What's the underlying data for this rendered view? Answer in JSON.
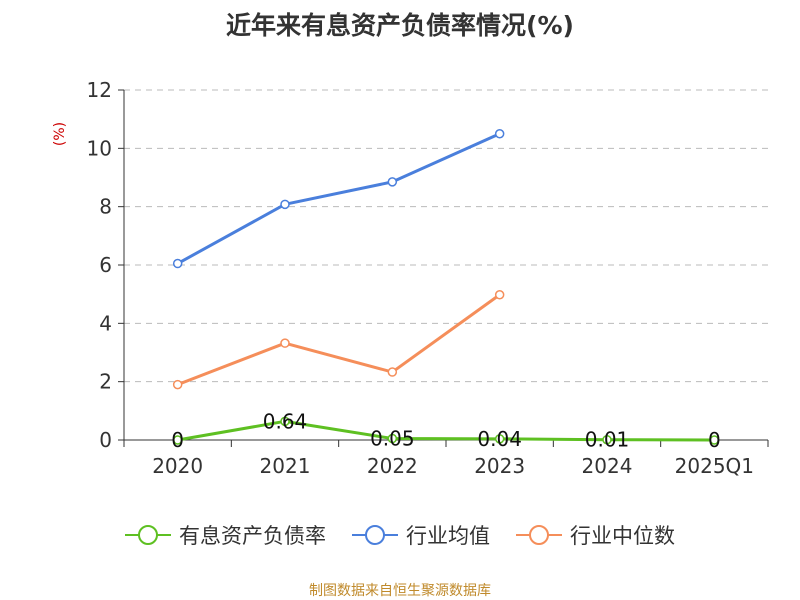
{
  "title": "近年来有息资产负债率情况(%)",
  "footer": "制图数据来自恒生聚源数据库",
  "chart_data": {
    "type": "line",
    "title": "近年来有息资产负债率情况(%)",
    "ylabel": "(%)",
    "xlabel": "",
    "categories": [
      "2020",
      "2021",
      "2022",
      "2023",
      "2024",
      "2025Q1"
    ],
    "ylim": [
      0,
      12
    ],
    "yticks": [
      "0",
      "2",
      "4",
      "6",
      "8",
      "10",
      "12"
    ],
    "grid": true,
    "legend_position": "bottom",
    "series": [
      {
        "name": "有息资产负债率",
        "color": "#5ec022",
        "values": [
          0,
          0.64,
          0.05,
          0.04,
          0.01,
          0
        ],
        "labels": [
          "0",
          "0.64",
          "0.05",
          "0.04",
          "0.01",
          "0"
        ]
      },
      {
        "name": "行业均值",
        "color": "#4a7fdc",
        "values": [
          6.05,
          8.08,
          8.85,
          10.5,
          null,
          null
        ]
      },
      {
        "name": "行业中位数",
        "color": "#f58e5a",
        "values": [
          1.9,
          3.32,
          2.33,
          4.98,
          null,
          null
        ]
      }
    ]
  }
}
